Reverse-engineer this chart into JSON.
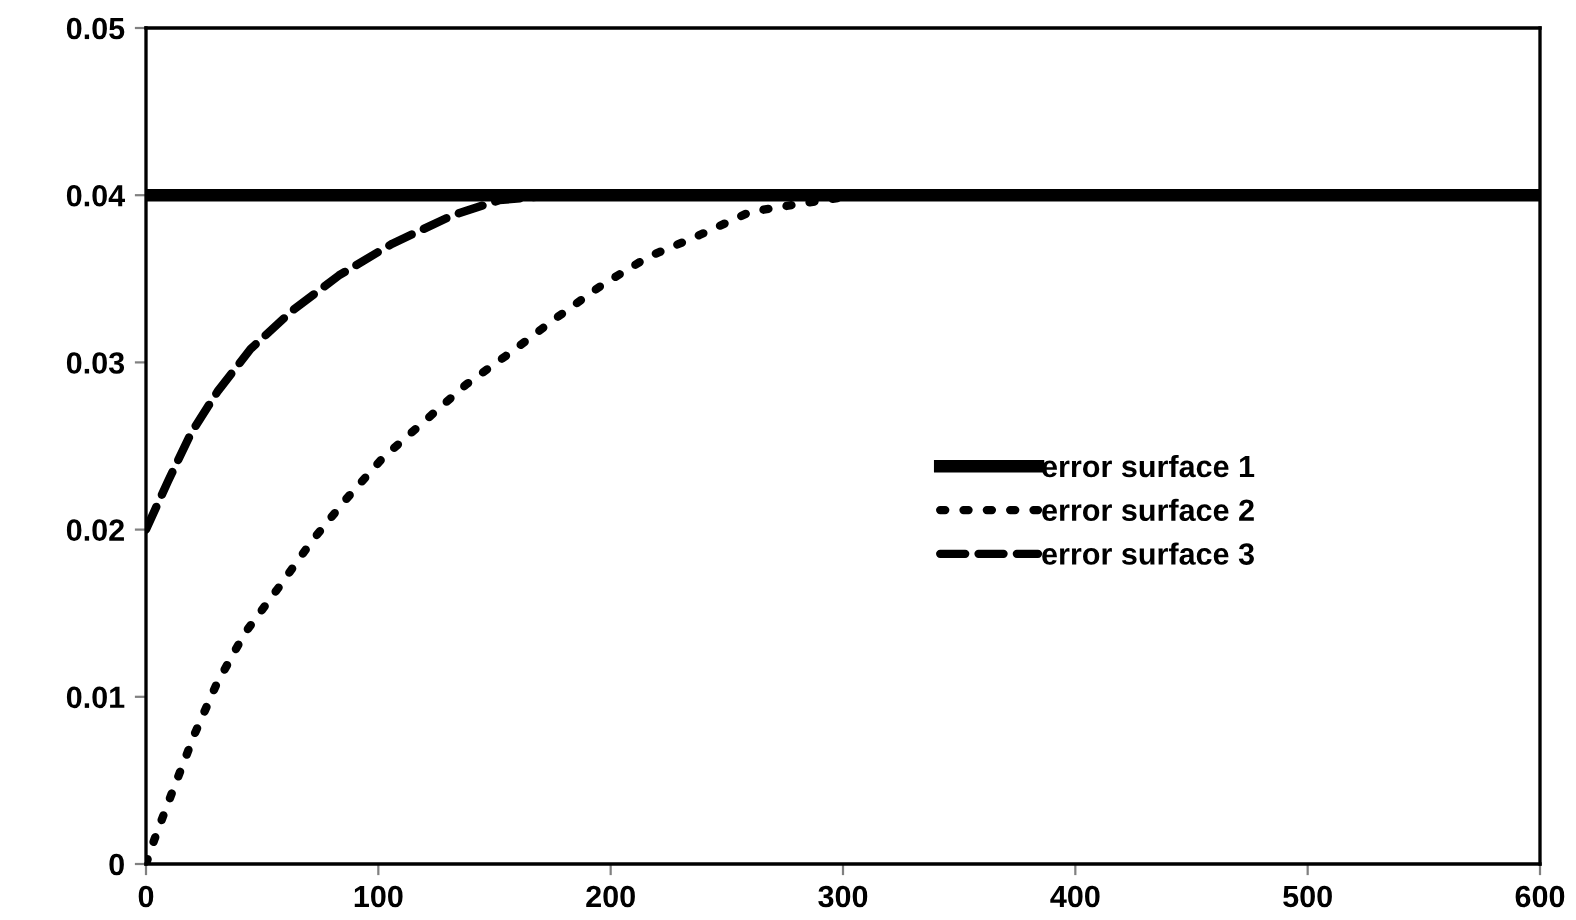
{
  "chart_data": {
    "type": "line",
    "xlim": [
      0,
      600
    ],
    "xticks": [
      0,
      100,
      200,
      300,
      400,
      500,
      600
    ],
    "ylim": [
      0,
      0.05
    ],
    "yticks": [
      {
        "value": 0,
        "label": "0"
      },
      {
        "value": 0.01,
        "label": "0.01"
      },
      {
        "value": 0.02,
        "label": "0.02"
      },
      {
        "value": 0.03,
        "label": "0.03"
      },
      {
        "value": 0.04,
        "label": "0.04"
      },
      {
        "value": 0.05,
        "label": "0.05"
      }
    ],
    "grid": false,
    "legend": "right",
    "series": [
      {
        "name": "error surface 1",
        "color": "#000000",
        "line_style": "solid",
        "x": [
          0,
          600
        ],
        "values": [
          0.04,
          0.04
        ]
      },
      {
        "name": "error surface 2",
        "color": "#000000",
        "line_style": "dotted",
        "x": [
          0,
          3.7,
          8,
          12.4,
          21,
          30.5,
          42.5,
          56.9,
          71.3,
          86,
          102,
          120,
          138,
          157,
          176,
          196,
          216,
          238,
          260,
          282,
          301,
          600
        ],
        "values": [
          0,
          0.0015,
          0.0031,
          0.0047,
          0.0078,
          0.0108,
          0.0138,
          0.0165,
          0.0193,
          0.0218,
          0.0243,
          0.0265,
          0.0287,
          0.0306,
          0.0326,
          0.0346,
          0.0363,
          0.0376,
          0.039,
          0.0395,
          0.0399,
          0.04
        ]
      },
      {
        "name": "error surface 3",
        "color": "#000000",
        "line_style": "dashed",
        "x": [
          0,
          9.5,
          19.5,
          31,
          45,
          63,
          83,
          106,
          132,
          152,
          175,
          600
        ],
        "values": [
          0.02,
          0.0229,
          0.0258,
          0.0283,
          0.0308,
          0.0331,
          0.0352,
          0.0371,
          0.0388,
          0.0397,
          0.04,
          0.04
        ]
      }
    ]
  }
}
